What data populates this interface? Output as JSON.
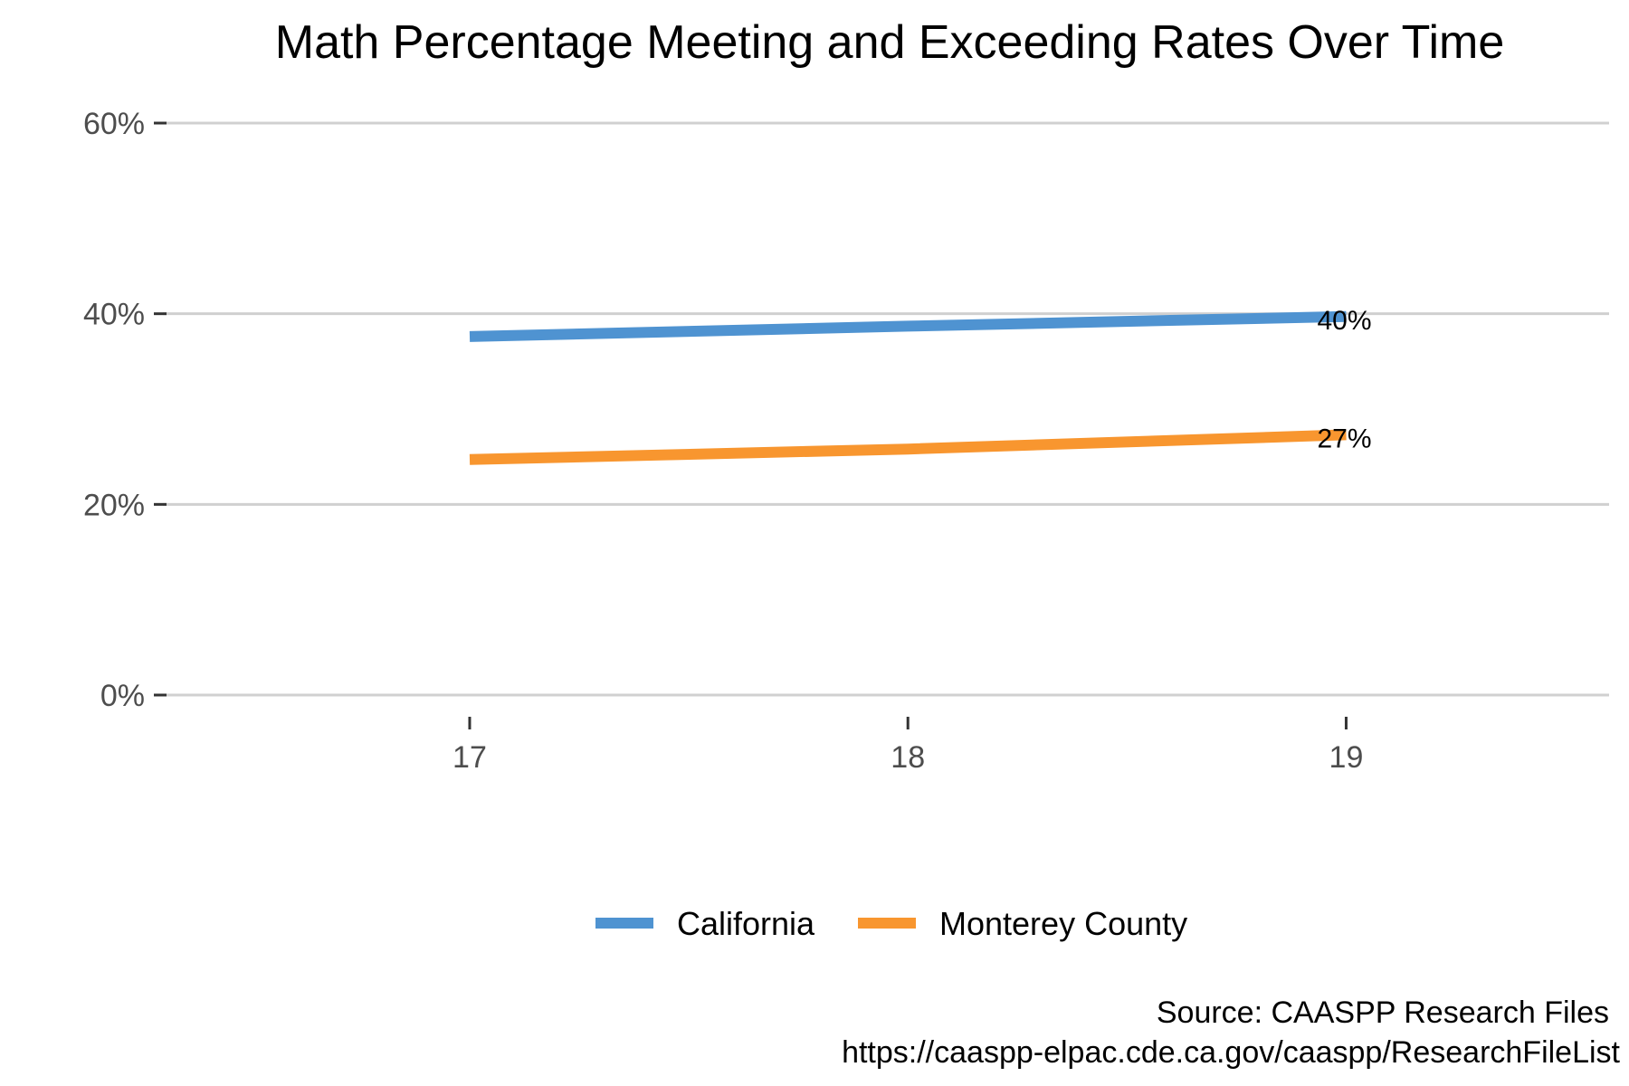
{
  "chart_data": {
    "type": "line",
    "title": "Math Percentage Meeting and Exceeding Rates Over Time",
    "xlabel": "",
    "ylabel": "",
    "x": [
      17,
      18,
      19
    ],
    "x_tick_labels": [
      "17",
      "18",
      "19"
    ],
    "xlim": [
      16.3,
      19.6
    ],
    "ylim": [
      0,
      60
    ],
    "y_ticks": [
      0,
      20,
      40,
      60
    ],
    "y_tick_labels": [
      "0%",
      "20%",
      "40%",
      "60%"
    ],
    "grid": "horizontal major",
    "legend_position": "bottom",
    "series": [
      {
        "name": "California",
        "values": [
          37.6,
          38.7,
          39.7
        ],
        "end_label": "40%",
        "color": "#4f93d1"
      },
      {
        "name": "Monterey County",
        "values": [
          24.7,
          25.8,
          27.3
        ],
        "end_label": "27%",
        "color": "#f8962f"
      }
    ],
    "caption_lines": [
      "Source: CAASPP Research Files",
      "https://caaspp-elpac.cde.ca.gov/caaspp/ResearchFileList"
    ]
  }
}
